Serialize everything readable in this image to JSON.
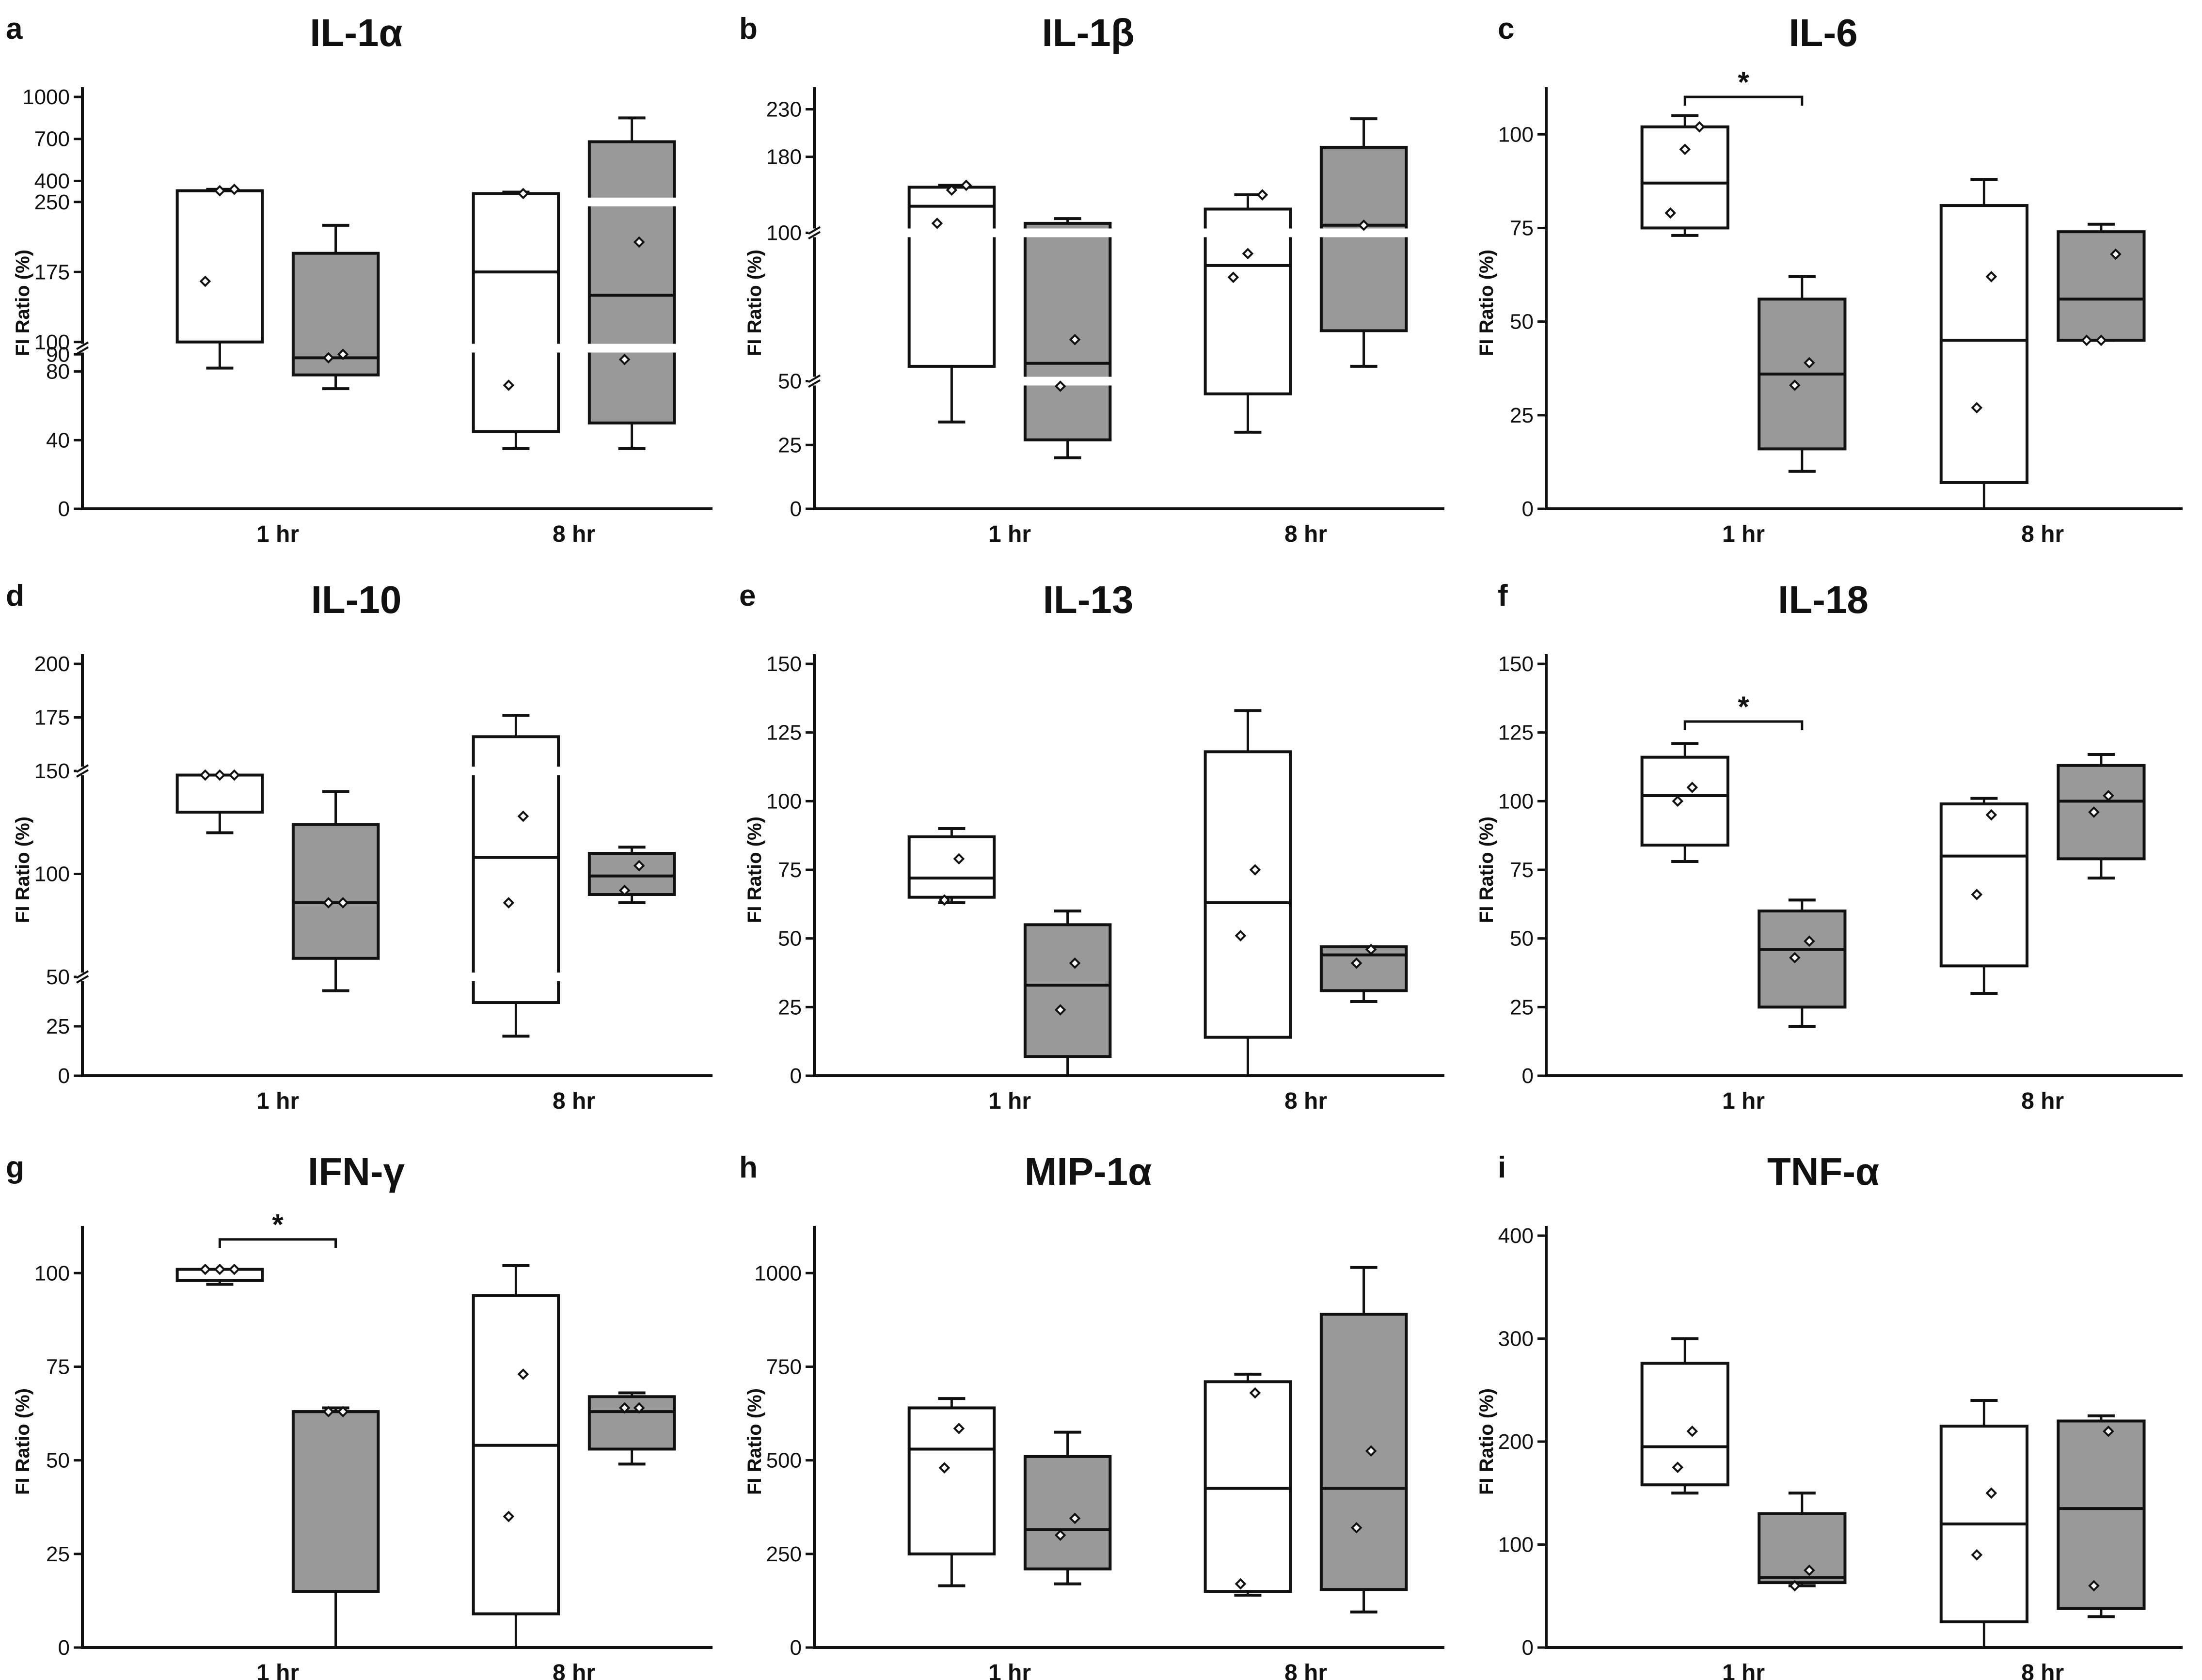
{
  "figure": {
    "colors": {
      "white_box": "#ffffff",
      "grey_box": "#999999",
      "stroke": "#111111",
      "break": "#ffffff"
    }
  },
  "chart_data": [
    {
      "type": "box",
      "letter": "a",
      "title": "IL-1α",
      "ylabel": "FI Ratio (%)",
      "categories": [
        "1 hr",
        "8 hr"
      ],
      "ytick_values": [
        0,
        40,
        80,
        90,
        100,
        175,
        250,
        400,
        700,
        1000
      ],
      "ytick_labels": [
        "0",
        "40",
        "80",
        "90",
        "100",
        "175",
        "250",
        "400",
        "700",
        "1000"
      ],
      "axis_segments": [
        {
          "d0": 0,
          "d1": 90,
          "p0": 0,
          "p1": 0.375
        },
        {
          "d0": 100,
          "d1": 250,
          "p0": 0.405,
          "p1": 0.745
        },
        {
          "d0": 250,
          "d1": 1000,
          "p0": 0.745,
          "p1": 1
        }
      ],
      "breaks": [
        95
      ],
      "boxes": [
        {
          "group": 0,
          "fill": "white",
          "min": 82,
          "q1": 100,
          "median": 330,
          "q3": 330,
          "max": 340,
          "points": [
            165,
            330,
            340
          ],
          "broken": [
            95
          ]
        },
        {
          "group": 0,
          "fill": "grey",
          "min": 70,
          "q1": 78,
          "median": 88,
          "q3": 195,
          "max": 225,
          "points": [
            88,
            90
          ],
          "broken": []
        },
        {
          "group": 1,
          "fill": "white",
          "min": 35,
          "q1": 45,
          "median": 175,
          "q3": 310,
          "max": 320,
          "points": [
            72,
            310
          ],
          "broken": [
            95
          ]
        },
        {
          "group": 1,
          "fill": "grey",
          "min": 35,
          "q1": 50,
          "median": 150,
          "q3": 680,
          "max": 850,
          "points": [
            87,
            207
          ],
          "broken": [
            95,
            250
          ]
        }
      ],
      "significance": []
    },
    {
      "type": "box",
      "letter": "b",
      "title": "IL-1β",
      "ylabel": "FI Ratio (%)",
      "categories": [
        "1 hr",
        "8 hr"
      ],
      "ytick_values": [
        0,
        25,
        50,
        100,
        180,
        230
      ],
      "ytick_labels": [
        "0",
        "25",
        "50",
        "100",
        "180",
        "230"
      ],
      "axis_segments": [
        {
          "d0": 0,
          "d1": 50,
          "p0": 0,
          "p1": 0.31
        },
        {
          "d0": 50,
          "d1": 100,
          "p0": 0.31,
          "p1": 0.67
        },
        {
          "d0": 100,
          "d1": 230,
          "p0": 0.67,
          "p1": 0.97
        }
      ],
      "breaks": [
        50,
        100
      ],
      "boxes": [
        {
          "group": 0,
          "fill": "white",
          "min": 34,
          "q1": 55,
          "median": 128,
          "q3": 148,
          "max": 150,
          "points": [
            110,
            145,
            150
          ],
          "broken": [
            100
          ]
        },
        {
          "group": 0,
          "fill": "grey",
          "min": 20,
          "q1": 27,
          "median": 56,
          "q3": 110,
          "max": 115,
          "points": [
            48,
            64
          ],
          "broken": [
            50,
            100
          ]
        },
        {
          "group": 1,
          "fill": "white",
          "min": 30,
          "q1": 45,
          "median": 89,
          "q3": 125,
          "max": 140,
          "points": [
            85,
            93,
            140
          ],
          "broken": [
            100
          ]
        },
        {
          "group": 1,
          "fill": "grey",
          "min": 55,
          "q1": 67,
          "median": 108,
          "q3": 190,
          "max": 220,
          "points": [
            108
          ],
          "broken": [
            100
          ]
        }
      ],
      "significance": []
    },
    {
      "type": "box",
      "letter": "c",
      "title": "IL-6",
      "ylabel": "FI Ratio (%)",
      "categories": [
        "1 hr",
        "8 hr"
      ],
      "ylim": [
        0,
        110
      ],
      "ytick_values": [
        0,
        25,
        50,
        75,
        100
      ],
      "ytick_labels": [
        "0",
        "25",
        "50",
        "75",
        "100"
      ],
      "breaks": [],
      "boxes": [
        {
          "group": 0,
          "fill": "white",
          "min": 73,
          "q1": 75,
          "median": 87,
          "q3": 102,
          "max": 105,
          "points": [
            79,
            96,
            102
          ],
          "broken": []
        },
        {
          "group": 0,
          "fill": "grey",
          "min": 10,
          "q1": 16,
          "median": 36,
          "q3": 56,
          "max": 62,
          "points": [
            33,
            39
          ],
          "broken": []
        },
        {
          "group": 1,
          "fill": "white",
          "min": 0,
          "q1": 7,
          "median": 45,
          "q3": 81,
          "max": 88,
          "points": [
            27,
            62
          ],
          "broken": []
        },
        {
          "group": 1,
          "fill": "grey",
          "min": 45,
          "q1": 45,
          "median": 56,
          "q3": 74,
          "max": 76,
          "points": [
            45,
            45,
            68
          ],
          "broken": []
        }
      ],
      "significance": [
        {
          "from": 0,
          "to": 1,
          "y": 110,
          "label": "*"
        }
      ]
    },
    {
      "type": "box",
      "letter": "d",
      "title": "IL-10",
      "ylabel": "FI Ratio (%)",
      "categories": [
        "1 hr",
        "8 hr"
      ],
      "ytick_values": [
        0,
        25,
        50,
        100,
        150,
        175,
        200
      ],
      "ytick_labels": [
        "0",
        "25",
        "50",
        "100",
        "150",
        "175",
        "200"
      ],
      "axis_segments": [
        {
          "d0": 0,
          "d1": 50,
          "p0": 0,
          "p1": 0.24
        },
        {
          "d0": 50,
          "d1": 150,
          "p0": 0.24,
          "p1": 0.74
        },
        {
          "d0": 150,
          "d1": 200,
          "p0": 0.74,
          "p1": 1
        }
      ],
      "breaks": [
        50,
        150
      ],
      "boxes": [
        {
          "group": 0,
          "fill": "white",
          "min": 120,
          "q1": 130,
          "median": 148,
          "q3": 148,
          "max": 148,
          "points": [
            148,
            148,
            148
          ],
          "broken": []
        },
        {
          "group": 0,
          "fill": "grey",
          "min": 43,
          "q1": 59,
          "median": 86,
          "q3": 124,
          "max": 140,
          "points": [
            86,
            86
          ],
          "broken": []
        },
        {
          "group": 1,
          "fill": "white",
          "min": 20,
          "q1": 37,
          "median": 108,
          "q3": 166,
          "max": 176,
          "points": [
            86,
            128
          ],
          "broken": [
            50,
            150
          ]
        },
        {
          "group": 1,
          "fill": "grey",
          "min": 86,
          "q1": 90,
          "median": 99,
          "q3": 110,
          "max": 113,
          "points": [
            92,
            104
          ],
          "broken": []
        }
      ],
      "significance": []
    },
    {
      "type": "box",
      "letter": "e",
      "title": "IL-13",
      "ylabel": "FI Ratio (%)",
      "categories": [
        "1 hr",
        "8 hr"
      ],
      "ylim": [
        0,
        150
      ],
      "ytick_values": [
        0,
        25,
        50,
        75,
        100,
        125,
        150
      ],
      "ytick_labels": [
        "0",
        "25",
        "50",
        "75",
        "100",
        "125",
        "150"
      ],
      "breaks": [],
      "boxes": [
        {
          "group": 0,
          "fill": "white",
          "min": 63,
          "q1": 65,
          "median": 72,
          "q3": 87,
          "max": 90,
          "points": [
            64,
            79
          ],
          "broken": []
        },
        {
          "group": 0,
          "fill": "grey",
          "min": 0,
          "q1": 7,
          "median": 33,
          "q3": 55,
          "max": 60,
          "points": [
            24,
            41
          ],
          "broken": []
        },
        {
          "group": 1,
          "fill": "white",
          "min": 0,
          "q1": 14,
          "median": 63,
          "q3": 118,
          "max": 133,
          "points": [
            51,
            75
          ],
          "broken": []
        },
        {
          "group": 1,
          "fill": "grey",
          "min": 27,
          "q1": 31,
          "median": 44,
          "q3": 47,
          "max": 47,
          "points": [
            41,
            46
          ],
          "broken": []
        }
      ],
      "significance": []
    },
    {
      "type": "box",
      "letter": "f",
      "title": "IL-18",
      "ylabel": "FI Ratio (%)",
      "categories": [
        "1 hr",
        "8 hr"
      ],
      "ylim": [
        0,
        150
      ],
      "ytick_values": [
        0,
        25,
        50,
        75,
        100,
        125,
        150
      ],
      "ytick_labels": [
        "0",
        "25",
        "50",
        "75",
        "100",
        "125",
        "150"
      ],
      "breaks": [],
      "boxes": [
        {
          "group": 0,
          "fill": "white",
          "min": 78,
          "q1": 84,
          "median": 102,
          "q3": 116,
          "max": 121,
          "points": [
            100,
            105
          ],
          "broken": []
        },
        {
          "group": 0,
          "fill": "grey",
          "min": 18,
          "q1": 25,
          "median": 46,
          "q3": 60,
          "max": 64,
          "points": [
            43,
            49
          ],
          "broken": []
        },
        {
          "group": 1,
          "fill": "white",
          "min": 30,
          "q1": 40,
          "median": 80,
          "q3": 99,
          "max": 101,
          "points": [
            66,
            95
          ],
          "broken": []
        },
        {
          "group": 1,
          "fill": "grey",
          "min": 72,
          "q1": 79,
          "median": 100,
          "q3": 113,
          "max": 117,
          "points": [
            96,
            102
          ],
          "broken": []
        }
      ],
      "significance": [
        {
          "from": 0,
          "to": 1,
          "y": 129,
          "label": "*"
        }
      ]
    },
    {
      "type": "box",
      "letter": "g",
      "title": "IFN-γ",
      "ylabel": "FI Ratio (%)",
      "categories": [
        "1 hr",
        "8 hr"
      ],
      "ylim": [
        0,
        110
      ],
      "ytick_values": [
        0,
        25,
        50,
        75,
        100
      ],
      "ytick_labels": [
        "0",
        "25",
        "50",
        "75",
        "100"
      ],
      "breaks": [],
      "boxes": [
        {
          "group": 0,
          "fill": "white",
          "min": 97,
          "q1": 98,
          "median": 101,
          "q3": 101,
          "max": 101,
          "points": [
            101,
            101,
            101
          ],
          "broken": []
        },
        {
          "group": 0,
          "fill": "grey",
          "min": 0,
          "q1": 15,
          "median": 63,
          "q3": 63,
          "max": 64,
          "points": [
            63,
            63
          ],
          "broken": []
        },
        {
          "group": 1,
          "fill": "white",
          "min": 0,
          "q1": 9,
          "median": 54,
          "q3": 94,
          "max": 102,
          "points": [
            35,
            73
          ],
          "broken": []
        },
        {
          "group": 1,
          "fill": "grey",
          "min": 49,
          "q1": 53,
          "median": 63,
          "q3": 67,
          "max": 68,
          "points": [
            64,
            64
          ],
          "broken": []
        }
      ],
      "significance": [
        {
          "from": 0,
          "to": 1,
          "y": 109,
          "label": "*"
        }
      ]
    },
    {
      "type": "box",
      "letter": "h",
      "title": "MIP-1α",
      "ylabel": "FI Ratio (%)",
      "categories": [
        "1 hr",
        "8 hr"
      ],
      "ylim": [
        0,
        1100
      ],
      "ytick_values": [
        0,
        250,
        500,
        750,
        1000
      ],
      "ytick_labels": [
        "0",
        "250",
        "500",
        "750",
        "1000"
      ],
      "breaks": [],
      "boxes": [
        {
          "group": 0,
          "fill": "white",
          "min": 165,
          "q1": 250,
          "median": 530,
          "q3": 640,
          "max": 665,
          "points": [
            480,
            585
          ],
          "broken": []
        },
        {
          "group": 0,
          "fill": "grey",
          "min": 170,
          "q1": 210,
          "median": 315,
          "q3": 510,
          "max": 575,
          "points": [
            300,
            345
          ],
          "broken": []
        },
        {
          "group": 1,
          "fill": "white",
          "min": 140,
          "q1": 150,
          "median": 425,
          "q3": 710,
          "max": 730,
          "points": [
            170,
            680
          ],
          "broken": []
        },
        {
          "group": 1,
          "fill": "grey",
          "min": 95,
          "q1": 155,
          "median": 425,
          "q3": 890,
          "max": 1015,
          "points": [
            320,
            525
          ],
          "broken": []
        }
      ],
      "significance": []
    },
    {
      "type": "box",
      "letter": "i",
      "title": "TNF-α",
      "ylabel": "FI Ratio (%)",
      "categories": [
        "1 hr",
        "8 hr"
      ],
      "ylim": [
        0,
        400
      ],
      "ytick_values": [
        0,
        100,
        200,
        300,
        400
      ],
      "ytick_labels": [
        "0",
        "100",
        "200",
        "300",
        "400"
      ],
      "breaks": [],
      "boxes": [
        {
          "group": 0,
          "fill": "white",
          "min": 150,
          "q1": 158,
          "median": 195,
          "q3": 276,
          "max": 300,
          "points": [
            175,
            210
          ],
          "broken": []
        },
        {
          "group": 0,
          "fill": "grey",
          "min": 60,
          "q1": 63,
          "median": 68,
          "q3": 130,
          "max": 150,
          "points": [
            60,
            75
          ],
          "broken": []
        },
        {
          "group": 1,
          "fill": "white",
          "min": 0,
          "q1": 25,
          "median": 120,
          "q3": 215,
          "max": 240,
          "points": [
            90,
            150
          ],
          "broken": []
        },
        {
          "group": 1,
          "fill": "grey",
          "min": 30,
          "q1": 38,
          "median": 135,
          "q3": 220,
          "max": 225,
          "points": [
            60,
            210
          ],
          "broken": []
        }
      ],
      "significance": []
    }
  ]
}
